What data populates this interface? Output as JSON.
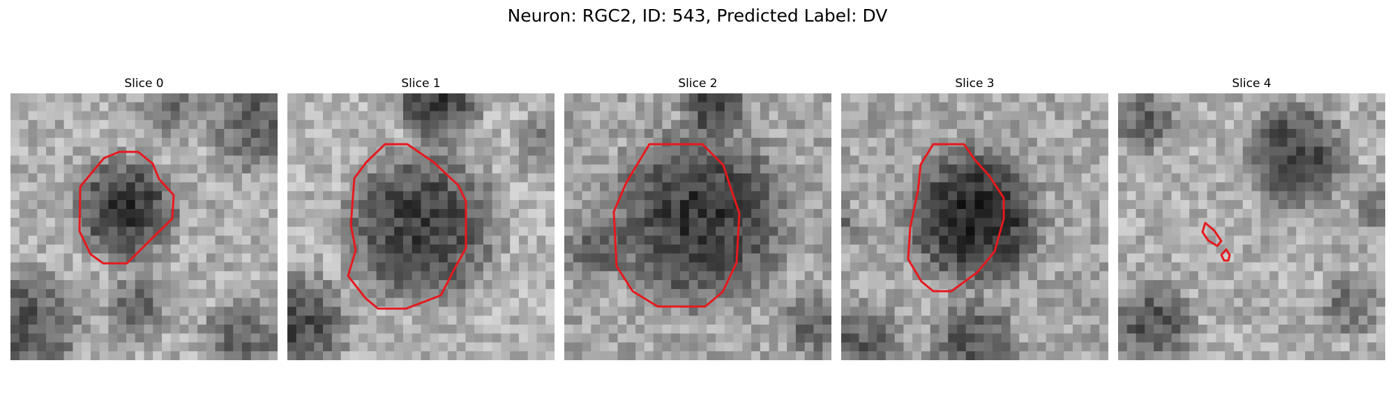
{
  "figure": {
    "title": "Neuron: RGC2, ID: 543, Predicted Label: DV",
    "outline_color": "#e6191e"
  },
  "slices": [
    {
      "title": "Slice 0"
    },
    {
      "title": "Slice 1"
    },
    {
      "title": "Slice 2"
    },
    {
      "title": "Slice 3"
    },
    {
      "title": "Slice 4"
    }
  ]
}
